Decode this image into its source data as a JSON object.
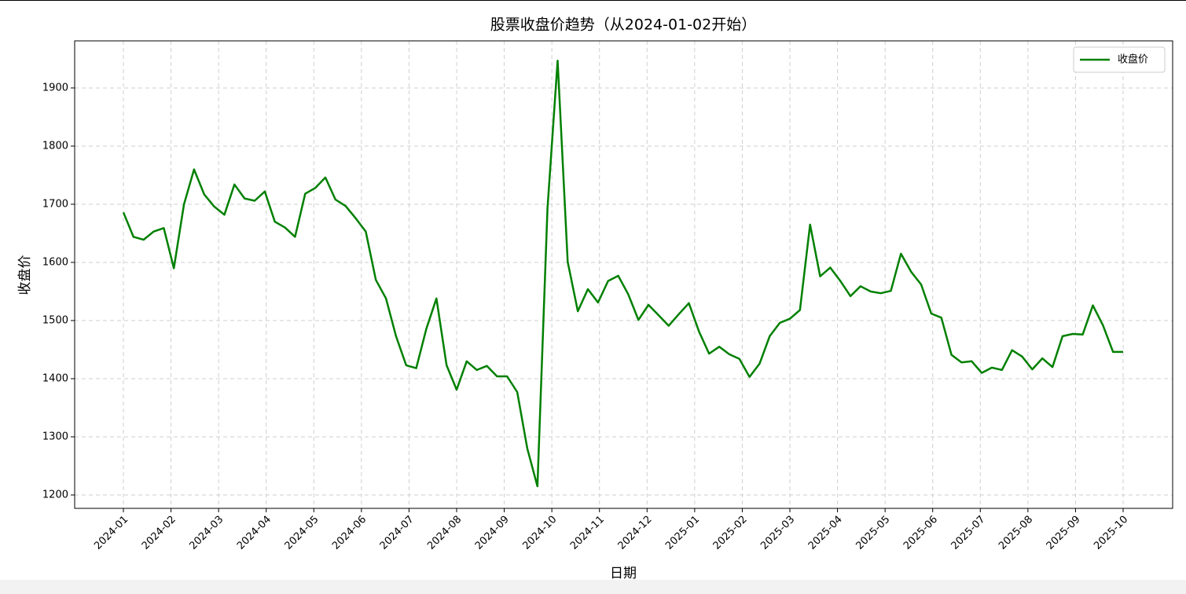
{
  "chart_data": {
    "type": "line",
    "title": "股票收盘价趋势（从2024-01-02开始）",
    "x_label": "日期",
    "y_label": "收盘价",
    "xticks": [
      "2024-01",
      "2024-02",
      "2024-03",
      "2024-04",
      "2024-05",
      "2024-06",
      "2024-07",
      "2024-08",
      "2024-09",
      "2024-10",
      "2024-11",
      "2024-12",
      "2025-01",
      "2025-02",
      "2025-03",
      "2025-04",
      "2025-05",
      "2025-06",
      "2025-07",
      "2025-08",
      "2025-09",
      "2025-10"
    ],
    "ylim": [
      1177,
      1981
    ],
    "yticks": [
      1200,
      1300,
      1400,
      1500,
      1600,
      1700,
      1800,
      1900
    ],
    "grid": true,
    "legend": "upper right",
    "series": [
      {
        "name": "收盘价",
        "color": "#008000",
        "values": [
          1686,
          1644,
          1639,
          1653,
          1659,
          1590,
          1700,
          1760,
          1717,
          1696,
          1682,
          1734,
          1710,
          1706,
          1722,
          1670,
          1660,
          1644,
          1718,
          1728,
          1746,
          1708,
          1697,
          1676,
          1653,
          1570,
          1538,
          1473,
          1423,
          1418,
          1486,
          1538,
          1423,
          1381,
          1430,
          1415,
          1422,
          1404,
          1404,
          1377,
          1280,
          1215,
          1693,
          1947,
          1601,
          1516,
          1554,
          1531,
          1568,
          1577,
          1545,
          1501,
          1527,
          1509,
          1491,
          1511,
          1530,
          1481,
          1443,
          1455,
          1442,
          1434,
          1403,
          1426,
          1473,
          1496,
          1503,
          1518,
          1665,
          1576,
          1591,
          1568,
          1542,
          1559,
          1550,
          1547,
          1551,
          1615,
          1584,
          1562,
          1512,
          1505,
          1441,
          1428,
          1430,
          1410,
          1419,
          1415,
          1449,
          1438,
          1416,
          1435,
          1420,
          1473,
          1477,
          1476,
          1526,
          1492,
          1446,
          1446
        ]
      }
    ]
  }
}
